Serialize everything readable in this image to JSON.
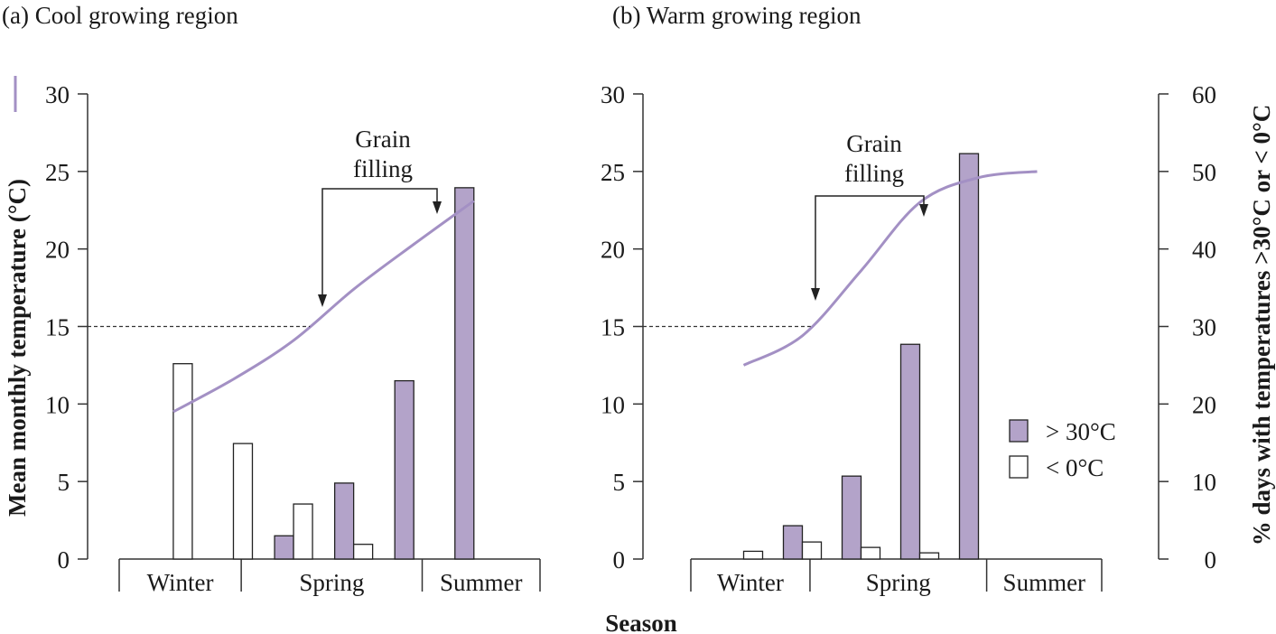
{
  "chart_data": [
    {
      "type": "bar",
      "title": "(a) Cool growing region",
      "ylabel": "Mean monthly temperature (°C)",
      "xlabel": "Season",
      "categories": [
        null,
        null,
        null,
        null,
        null,
        null
      ],
      "season_labels": [
        "Winter",
        "Spring",
        "Summer"
      ],
      "series": [
        {
          "name": "> 30°C",
          "color": "#b3a3c9",
          "axis": "y2",
          "values": [
            null,
            null,
            3.0,
            9.8,
            23.0,
            47.9
          ]
        },
        {
          "name": "< 0°C",
          "color": "#ffffff",
          "axis": "y2",
          "values": [
            25.2,
            14.9,
            7.1,
            1.9,
            null,
            null
          ]
        }
      ],
      "line": {
        "color": "#a390c4",
        "values": [
          9.5,
          11.6,
          14.1,
          17.4,
          20.3,
          23.1
        ]
      },
      "reference_line": 15,
      "annotation": "Grain filling",
      "ylim": [
        0,
        30
      ],
      "yticks": [
        0,
        5,
        10,
        15,
        20,
        25,
        30
      ],
      "y2lim": [
        0,
        60
      ]
    },
    {
      "type": "bar",
      "title": "(b) Warm growing region",
      "y2label": "% days with temperatures >30°C or < 0°C",
      "categories": [
        null,
        null,
        null,
        null,
        null,
        null
      ],
      "season_labels": [
        "Winter",
        "Spring",
        "Summer"
      ],
      "series": [
        {
          "name": "> 30°C",
          "color": "#b3a3c9",
          "axis": "y2",
          "values": [
            null,
            4.3,
            10.7,
            27.7,
            52.3,
            null
          ]
        },
        {
          "name": "< 0°C",
          "color": "#ffffff",
          "axis": "y2",
          "values": [
            1.0,
            2.2,
            1.5,
            0.8,
            null,
            null
          ]
        }
      ],
      "line": {
        "color": "#a390c4",
        "values": [
          12.5,
          14.4,
          18.6,
          23.0,
          24.6,
          25.0
        ]
      },
      "reference_line": 15,
      "annotation": "Grain filling",
      "legend": "center right",
      "ylim": [
        0,
        30
      ],
      "yticks": [
        0,
        5,
        10,
        15,
        20,
        25,
        30
      ],
      "y2lim": [
        0,
        60
      ],
      "y2ticks": [
        0,
        10,
        20,
        30,
        40,
        50,
        60
      ]
    }
  ]
}
